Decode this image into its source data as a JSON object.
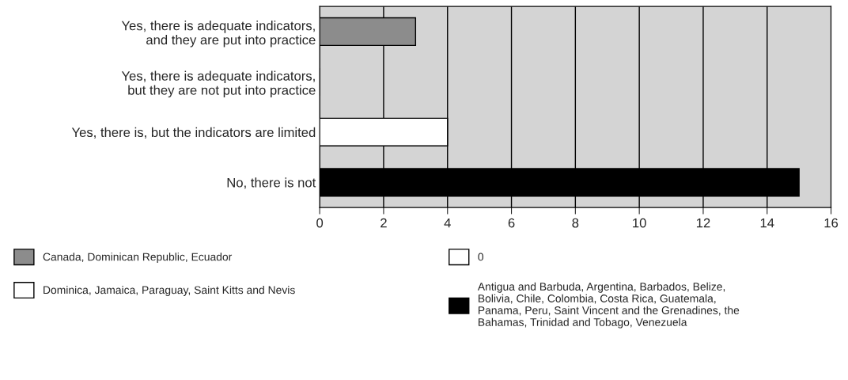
{
  "chart_data": {
    "type": "bar",
    "orientation": "horizontal",
    "categories": [
      "Yes, there is adequate indicators,\nand they are put into practice",
      "Yes, there is adequate indicators,\nbut they are not put into practice",
      "Yes, there is, but the indicators are limited",
      "No, there is not"
    ],
    "series": [
      {
        "name": "Canada, Dominican Republic, Ecuador",
        "color": "#8c8c8c",
        "values": [
          3,
          null,
          null,
          null
        ]
      },
      {
        "name": "0",
        "color": "#ffffff",
        "values": [
          null,
          0,
          null,
          null
        ]
      },
      {
        "name": "Dominica, Jamaica, Paraguay, Saint Kitts and Nevis",
        "color": "#ffffff",
        "values": [
          null,
          null,
          4,
          null
        ]
      },
      {
        "name": "Antigua and Barbuda, Argentina, Barbados, Belize,\nBolivia, Chile, Colombia, Costa Rica, Guatemala,\nPanama, Peru, Saint Vincent and the Grenadines, the\nBahamas, Trinidad and Tobago, Venezuela",
        "color": "#000000",
        "values": [
          null,
          null,
          null,
          15
        ]
      }
    ],
    "xlim": [
      0,
      16
    ],
    "xticks": [
      0,
      2,
      4,
      6,
      8,
      10,
      12,
      14,
      16
    ],
    "grid": "x",
    "legend": "bottom"
  }
}
